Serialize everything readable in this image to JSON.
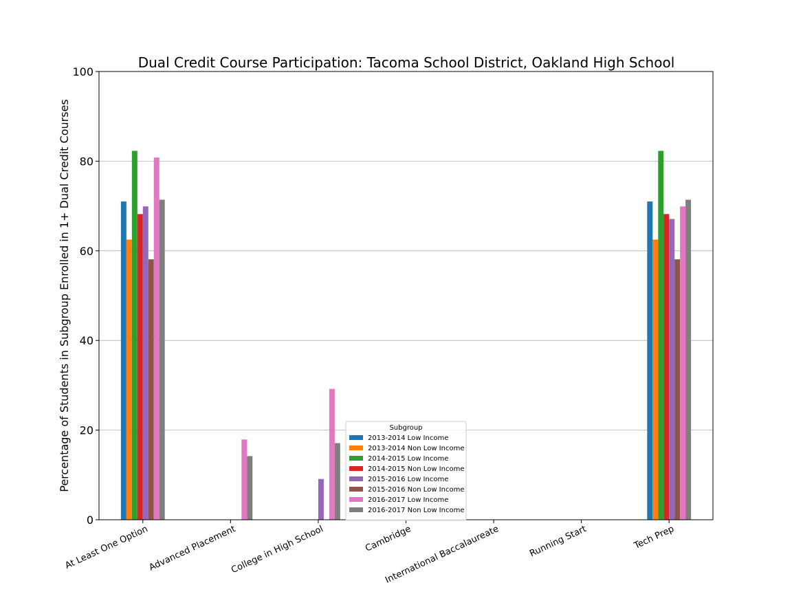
{
  "chart_data": {
    "type": "bar",
    "title": "Dual Credit Course Participation: Tacoma School District, Oakland High School",
    "xlabel": "",
    "ylabel": "Percentage of Students in Subgroup Enrolled in 1+ Dual Credit Courses",
    "ylim": [
      0,
      100
    ],
    "yticks": [
      "0",
      "20",
      "40",
      "60",
      "80",
      "100"
    ],
    "grid": "horizontal",
    "legend_title": "Subgroup",
    "legend_position": "bottom-center",
    "categories": [
      "At Least One Option",
      "Advanced Placement",
      "College in High School",
      "Cambridge",
      "International Baccalaureate",
      "Running Start",
      "Tech Prep"
    ],
    "series": [
      {
        "name": "2013-2014 Low Income",
        "color": "#1f77b4",
        "values": [
          71.0,
          0,
          0,
          0,
          0,
          0,
          71.0
        ]
      },
      {
        "name": "2013-2014 Non Low Income",
        "color": "#ff7f0e",
        "values": [
          62.5,
          0,
          0,
          0,
          0,
          0,
          62.5
        ]
      },
      {
        "name": "2014-2015 Low Income",
        "color": "#2ca02c",
        "values": [
          82.3,
          0,
          0,
          0,
          0,
          0,
          82.3
        ]
      },
      {
        "name": "2014-2015 Non Low Income",
        "color": "#d62728",
        "values": [
          68.2,
          0,
          0,
          0,
          0,
          0,
          68.2
        ]
      },
      {
        "name": "2015-2016 Low Income",
        "color": "#9467bd",
        "values": [
          69.9,
          0,
          9.1,
          0,
          0,
          0,
          67.1
        ]
      },
      {
        "name": "2015-2016 Non Low Income",
        "color": "#8c564b",
        "values": [
          58.1,
          0,
          0,
          0,
          0,
          0,
          58.1
        ]
      },
      {
        "name": "2016-2017 Low Income",
        "color": "#e377c2",
        "values": [
          80.8,
          17.9,
          29.2,
          0,
          0,
          0,
          69.9
        ]
      },
      {
        "name": "2016-2017 Non Low Income",
        "color": "#7f7f7f",
        "values": [
          71.4,
          14.2,
          17.1,
          0,
          0,
          0,
          71.4
        ]
      }
    ]
  }
}
